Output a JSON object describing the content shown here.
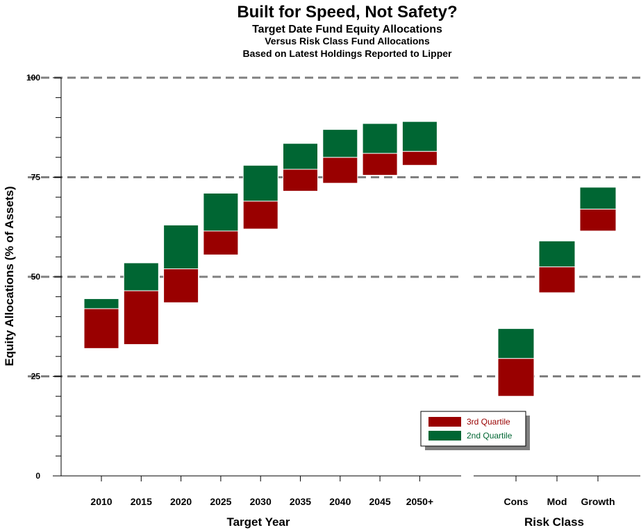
{
  "chart_data": {
    "type": "bar",
    "title": "Built for Speed, Not Safety?",
    "subtitle1": "Target Date Fund Equity Allocations",
    "subtitle2": "Versus Risk Class Fund Allocations",
    "subtitle3": "Based on Latest Holdings Reported to Lipper",
    "ylabel": "Equity Allocations (% of Assets)",
    "ylim": [
      0,
      100
    ],
    "yticks": [
      "0",
      "25",
      "50",
      "75",
      "100"
    ],
    "grid": "dashed horizontal at 25, 50, 75, 100",
    "legend_placement": "bottom-right of left panel",
    "colors": {
      "q3": "#990000",
      "q2": "#006633",
      "grid": "#808080"
    },
    "legend": [
      {
        "name": "3rd Quartile",
        "color": "#990000"
      },
      {
        "name": "2nd Quartile",
        "color": "#006633"
      }
    ],
    "panels": [
      {
        "xlabel": "Target Year",
        "categories": [
          "2010",
          "2015",
          "2020",
          "2025",
          "2030",
          "2035",
          "2040",
          "2045",
          "2050+"
        ],
        "series": [
          {
            "name": "3rd Quartile",
            "low": [
              32,
              33,
              43.5,
              55.5,
              62,
              71.5,
              73.5,
              75.5,
              78
            ],
            "high": [
              42,
              46.5,
              52,
              61.5,
              69,
              77,
              80,
              81,
              81.5
            ]
          },
          {
            "name": "2nd Quartile",
            "low": [
              42,
              46.5,
              52,
              61.5,
              69,
              77,
              80,
              81,
              81.5
            ],
            "high": [
              44.5,
              53.5,
              63,
              71,
              78,
              83.5,
              87,
              88.5,
              89
            ]
          }
        ]
      },
      {
        "xlabel": "Risk Class",
        "categories": [
          "Cons",
          "Mod",
          "Growth"
        ],
        "series": [
          {
            "name": "3rd Quartile",
            "low": [
              20,
              46,
              61.5
            ],
            "high": [
              29.5,
              52.5,
              67
            ]
          },
          {
            "name": "2nd Quartile",
            "low": [
              29.5,
              52.5,
              67
            ],
            "high": [
              37,
              59,
              72.5
            ]
          }
        ]
      }
    ]
  }
}
